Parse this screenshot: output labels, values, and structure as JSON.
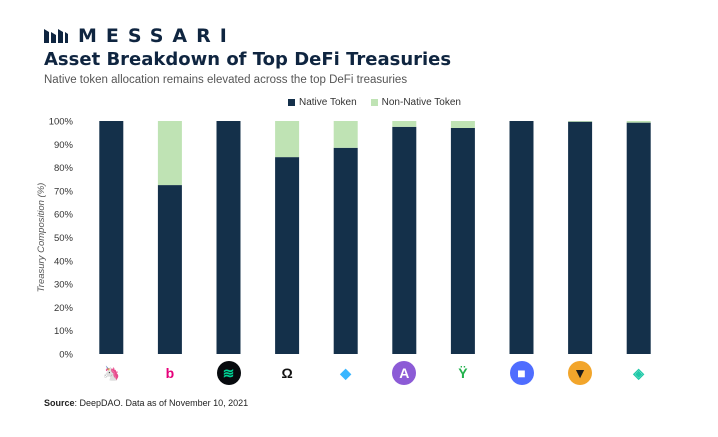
{
  "brand": {
    "name": "MESSARI",
    "color": "#0f2540"
  },
  "title": "Asset Breakdown of Top DeFi Treasuries",
  "subtitle": "Native token allocation remains elevated across the top DeFi treasuries",
  "source": {
    "label": "Source",
    "text": ": DeepDAO. Data as of November 10, 2021"
  },
  "colors": {
    "native": "#14304a",
    "non_native": "#bfe3b4"
  },
  "chart_data": {
    "type": "bar",
    "stacked": true,
    "ylabel": "Treasury Composition (%)",
    "ylim": [
      0,
      100
    ],
    "yticks": [
      "0%",
      "10%",
      "20%",
      "30%",
      "40%",
      "50%",
      "60%",
      "70%",
      "80%",
      "90%",
      "100%"
    ],
    "legend": {
      "placement": "top-center"
    },
    "categories": [
      "uniswap-icon",
      "badger-b-icon",
      "compound-icon",
      "olympus-icon",
      "lido-icon",
      "aave-icon",
      "sushi-sprout-icon",
      "radicle-icon",
      "badger-dao-icon",
      "gnosis-icon"
    ],
    "series": [
      {
        "name": "Native Token",
        "values": [
          100,
          72.5,
          100,
          84.5,
          88.5,
          97.5,
          97,
          100,
          99.7,
          99.3
        ]
      },
      {
        "name": "Non-Native Token",
        "values": [
          0,
          27.5,
          0,
          15.5,
          11.5,
          2.5,
          3,
          0,
          0.3,
          0.7
        ]
      }
    ]
  },
  "icons": [
    {
      "name": "uniswap-icon",
      "glyph": "🦄",
      "bg": "#ffffff",
      "fg": "#ff007a"
    },
    {
      "name": "badger-b-icon",
      "glyph": "b",
      "bg": "#ffffff",
      "fg": "#e6007a"
    },
    {
      "name": "compound-icon",
      "glyph": "≋",
      "bg": "#070a0e",
      "fg": "#00d395"
    },
    {
      "name": "olympus-icon",
      "glyph": "Ω",
      "bg": "#ffffff",
      "fg": "#111111"
    },
    {
      "name": "lido-icon",
      "glyph": "◆",
      "bg": "#ffffff",
      "fg": "#38b6ff"
    },
    {
      "name": "aave-icon",
      "glyph": "A",
      "bg": "#8c5bd6",
      "fg": "#ffffff"
    },
    {
      "name": "sushi-sprout-icon",
      "glyph": "Ÿ",
      "bg": "#ffffff",
      "fg": "#22b24c"
    },
    {
      "name": "radicle-icon",
      "glyph": "■",
      "bg": "#4f6dff",
      "fg": "#ffffff"
    },
    {
      "name": "badger-dao-icon",
      "glyph": "▼",
      "bg": "#f2a52b",
      "fg": "#1c1c1c"
    },
    {
      "name": "gnosis-icon",
      "glyph": "◈",
      "bg": "#ffffff",
      "fg": "#1fc9a8"
    }
  ]
}
